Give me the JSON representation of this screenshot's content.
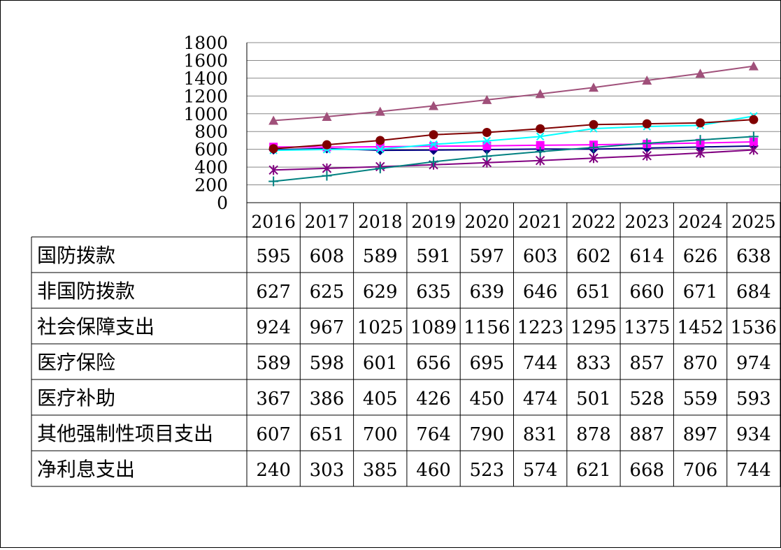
{
  "chart_data": {
    "type": "line",
    "title": "",
    "xlabel": "",
    "ylabel": "",
    "ylim": [
      0,
      1800
    ],
    "yticks": [
      0,
      200,
      400,
      600,
      800,
      1000,
      1200,
      1400,
      1600,
      1800
    ],
    "grid": true,
    "legend": "data-table-below",
    "categories": [
      "2016",
      "2017",
      "2018",
      "2019",
      "2020",
      "2021",
      "2022",
      "2023",
      "2024",
      "2025"
    ],
    "series": [
      {
        "name": "国防拨款",
        "values": [
          595,
          608,
          589,
          591,
          597,
          603,
          602,
          614,
          626,
          638
        ],
        "color": "#000080",
        "marker": "diamond"
      },
      {
        "name": "非国防拨款",
        "values": [
          627,
          625,
          629,
          635,
          639,
          646,
          651,
          660,
          671,
          684
        ],
        "color": "#ff00ff",
        "marker": "square"
      },
      {
        "name": "社会保障支出",
        "values": [
          924,
          967,
          1025,
          1089,
          1156,
          1223,
          1295,
          1375,
          1452,
          1536
        ],
        "color": "#a0507a",
        "marker": "triangle"
      },
      {
        "name": "医疗保险",
        "values": [
          589,
          598,
          601,
          656,
          695,
          744,
          833,
          857,
          870,
          974
        ],
        "color": "#00ffff",
        "marker": "x"
      },
      {
        "name": "医疗补助",
        "values": [
          367,
          386,
          405,
          426,
          450,
          474,
          501,
          528,
          559,
          593
        ],
        "color": "#800080",
        "marker": "star"
      },
      {
        "name": "其他强制性项目支出",
        "values": [
          607,
          651,
          700,
          764,
          790,
          831,
          878,
          887,
          897,
          934
        ],
        "color": "#800000",
        "marker": "circle"
      },
      {
        "name": "净利息支出",
        "values": [
          240,
          303,
          385,
          460,
          523,
          574,
          621,
          668,
          706,
          744
        ],
        "color": "#008080",
        "marker": "plus"
      }
    ]
  }
}
